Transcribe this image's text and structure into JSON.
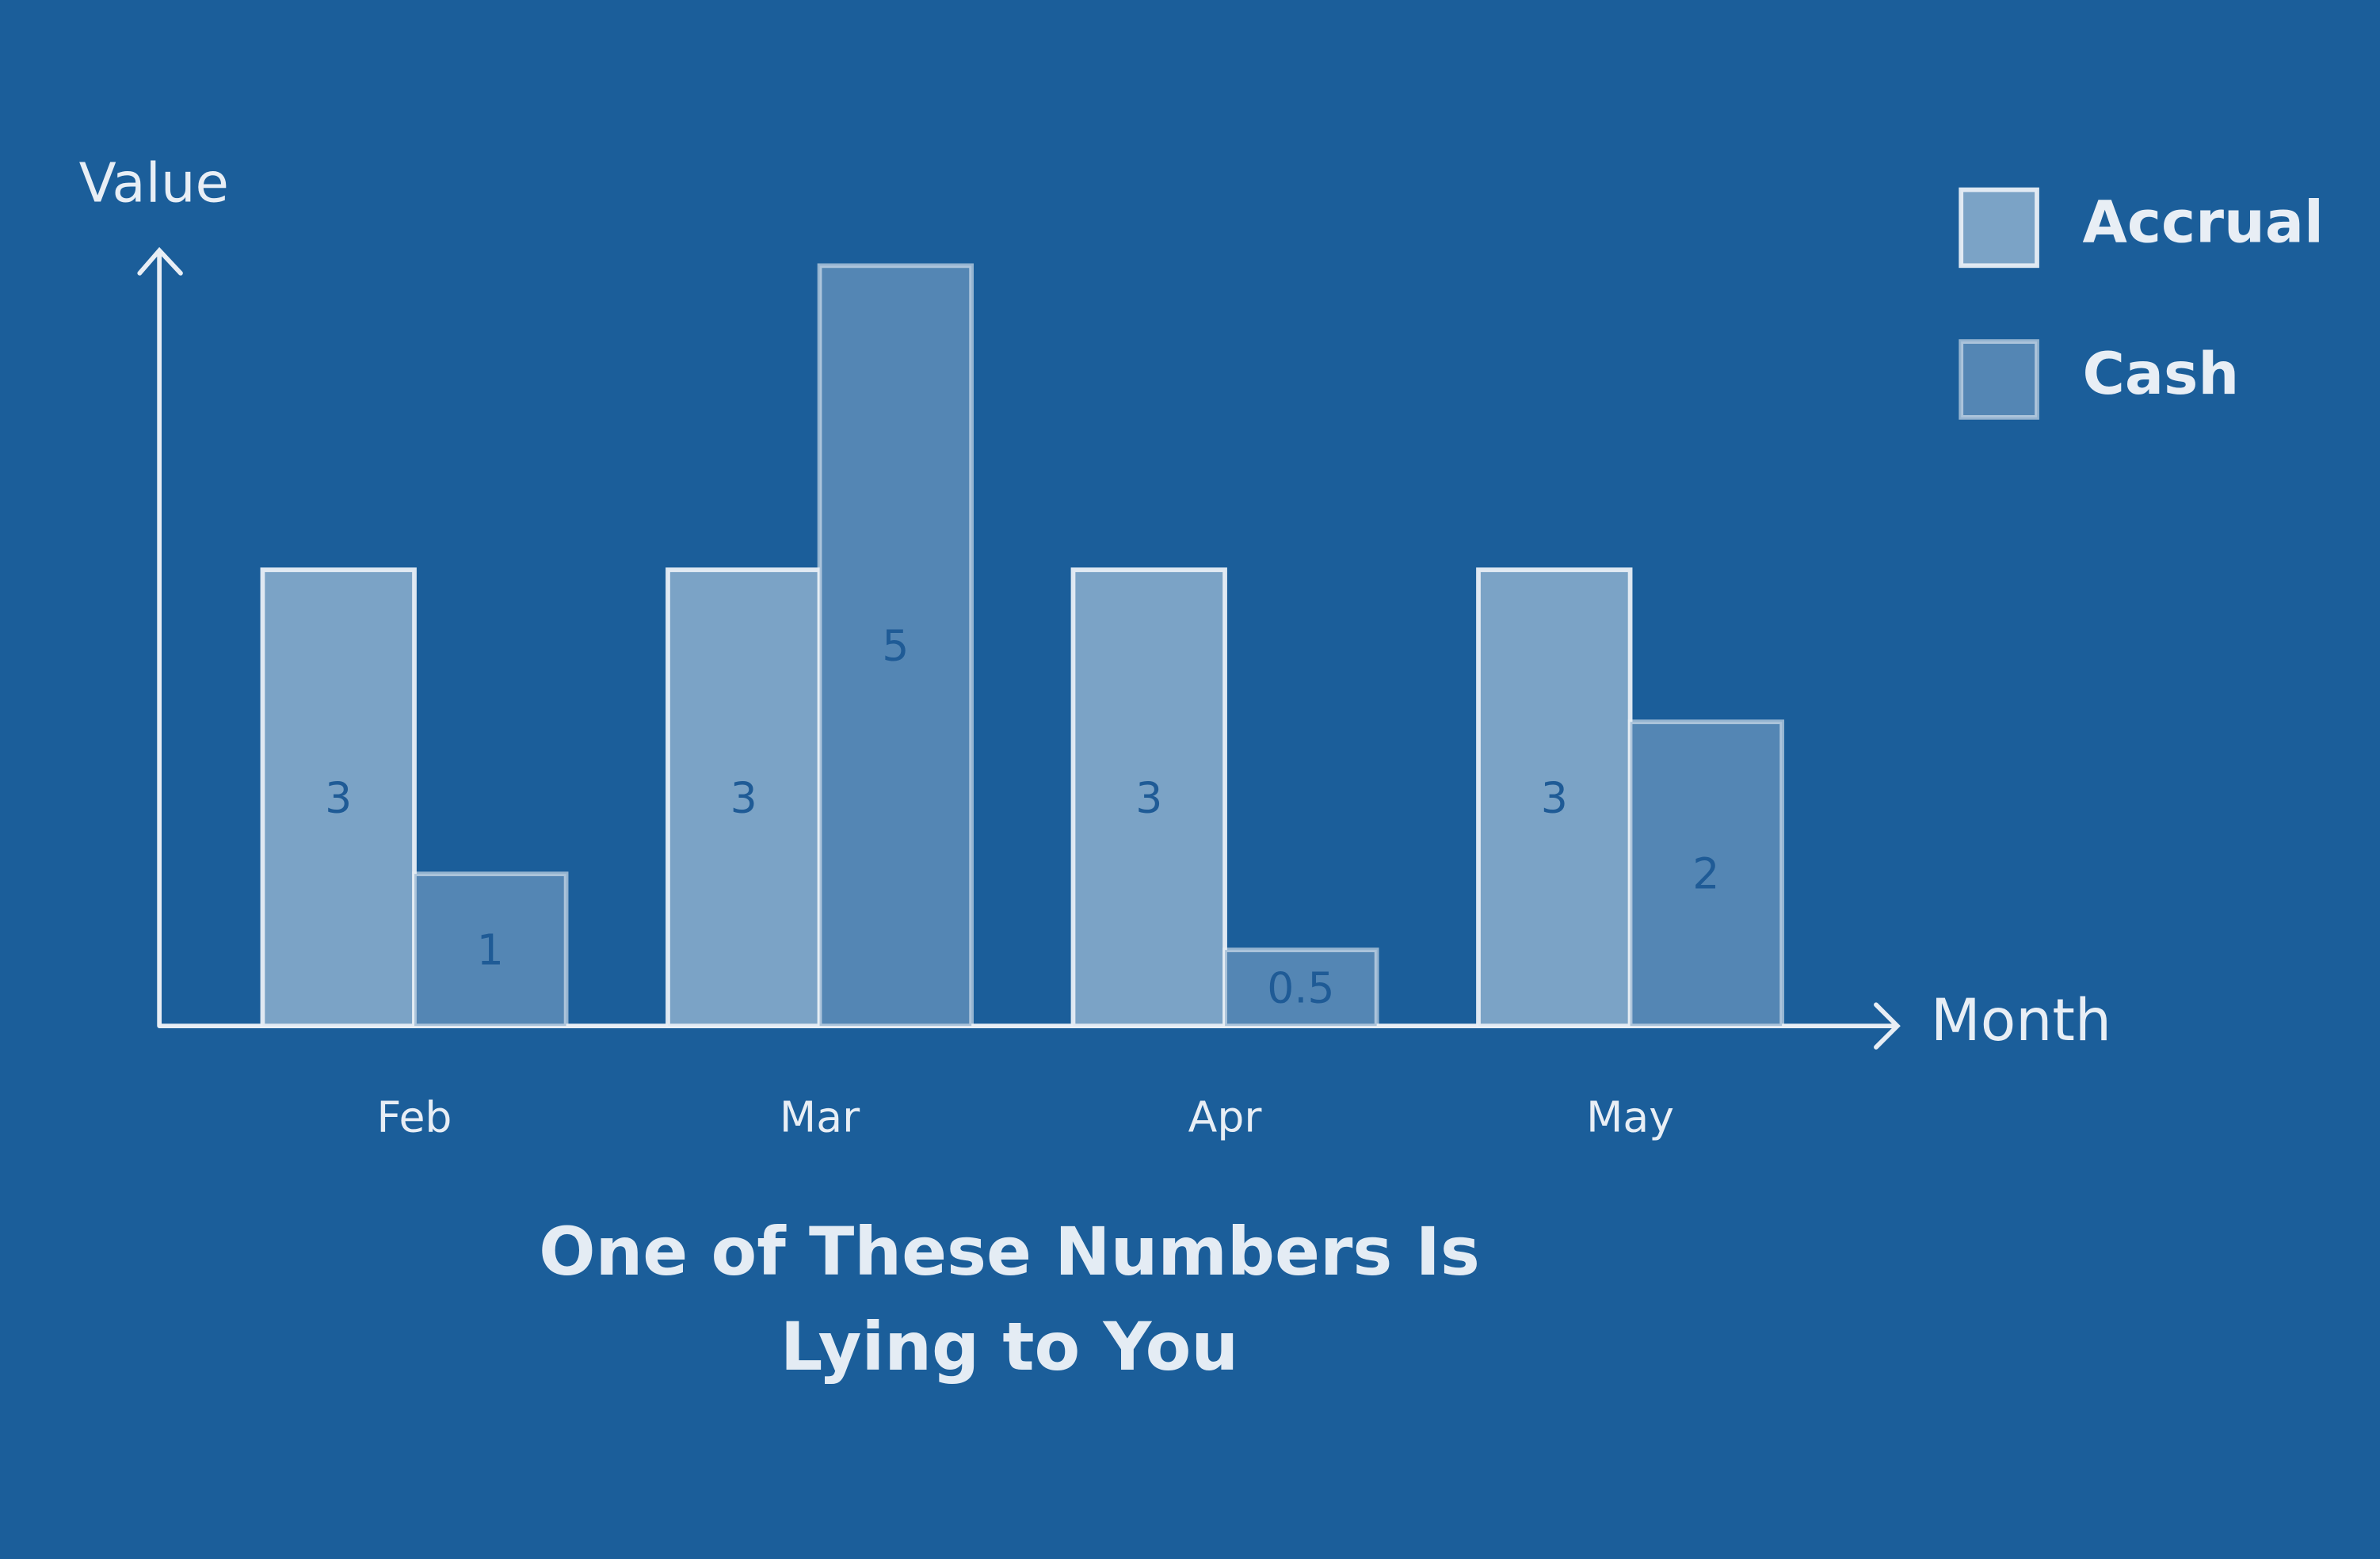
{
  "chart_data": {
    "type": "bar",
    "title": "One of These Numbers Is Lying to You",
    "x_label": "Month",
    "y_label": "Value",
    "categories": [
      "Feb",
      "Mar",
      "Apr",
      "May"
    ],
    "series": [
      {
        "name": "Accrual",
        "color": "#7ba3c6",
        "values": [
          3,
          3,
          3,
          3
        ]
      },
      {
        "name": "Cash",
        "color": "#5486b4",
        "values": [
          1,
          5,
          0.5,
          2
        ]
      }
    ],
    "ylim": [
      0,
      5.1
    ],
    "legend": "top-right"
  }
}
